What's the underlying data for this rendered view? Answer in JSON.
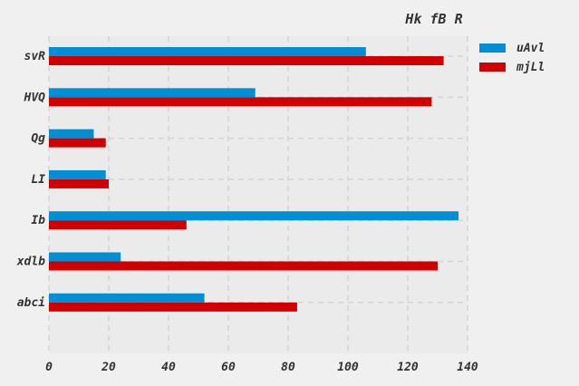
{
  "chart_data": {
    "type": "bar",
    "orientation": "horizontal",
    "title": "Hk fB R",
    "xlabel": "",
    "ylabel": "",
    "categories": [
      "svR",
      "HVQ",
      "Qg",
      "LI",
      "Ib",
      "xdlb",
      "abci"
    ],
    "series": [
      {
        "name": "uAvl",
        "color": "#008fd5",
        "values": [
          106,
          69,
          15,
          19,
          137,
          24,
          52
        ]
      },
      {
        "name": "mjLl",
        "color": "#d00000",
        "values": [
          132,
          128,
          19,
          20,
          46,
          130,
          83
        ]
      }
    ],
    "xlim": [
      0,
      140
    ],
    "xticks": [
      0,
      20,
      40,
      60,
      80,
      100,
      120,
      140
    ],
    "grid": true,
    "legend": "top-right"
  }
}
